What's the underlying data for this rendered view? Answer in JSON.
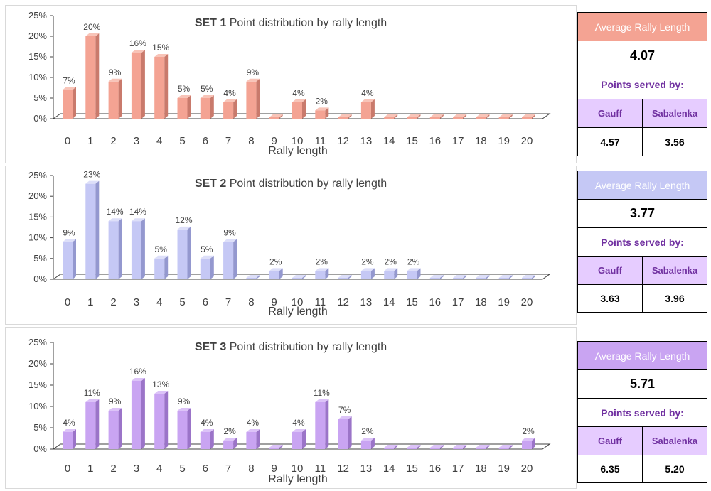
{
  "chart_data": [
    {
      "type": "bar",
      "title_bold": "SET 1",
      "title": "Point distribution by rally length",
      "xlabel": "Rally length",
      "ylabel": "",
      "ylim": [
        0,
        25
      ],
      "yticks": [
        "0%",
        "5%",
        "10%",
        "15%",
        "20%",
        "25%"
      ],
      "categories": [
        "0",
        "1",
        "2",
        "3",
        "4",
        "5",
        "6",
        "7",
        "8",
        "9",
        "10",
        "11",
        "12",
        "13",
        "14",
        "15",
        "16",
        "17",
        "18",
        "19",
        "20"
      ],
      "values": [
        7,
        20,
        9,
        16,
        15,
        5,
        5,
        4,
        9,
        0,
        4,
        2,
        0,
        4,
        0,
        0,
        0,
        0,
        0,
        0,
        0
      ],
      "labels": [
        "7%",
        "20%",
        "9%",
        "16%",
        "15%",
        "5%",
        "5%",
        "4%",
        "9%",
        "",
        "4%",
        "2%",
        "",
        "4%",
        "",
        "",
        "",
        "",
        "",
        "",
        ""
      ],
      "color": "#f4a393",
      "color_side": "#c97a6c",
      "color_top": "#f8c4b8",
      "grid": false
    },
    {
      "type": "bar",
      "title_bold": "SET 2",
      "title": "Point distribution by rally length",
      "xlabel": "Rally length",
      "ylabel": "",
      "ylim": [
        0,
        25
      ],
      "yticks": [
        "0%",
        "5%",
        "10%",
        "15%",
        "20%",
        "25%"
      ],
      "categories": [
        "0",
        "1",
        "2",
        "3",
        "4",
        "5",
        "6",
        "7",
        "8",
        "9",
        "10",
        "11",
        "12",
        "13",
        "14",
        "15",
        "16",
        "17",
        "18",
        "19",
        "20"
      ],
      "values": [
        9,
        23,
        14,
        14,
        5,
        12,
        5,
        9,
        0,
        2,
        0,
        2,
        0,
        2,
        2,
        2,
        0,
        0,
        0,
        0,
        0
      ],
      "labels": [
        "9%",
        "23%",
        "14%",
        "14%",
        "5%",
        "12%",
        "5%",
        "9%",
        "",
        "2%",
        "",
        "2%",
        "",
        "2%",
        "2%",
        "2%",
        "",
        "",
        "",
        "",
        ""
      ],
      "color": "#c5c8f5",
      "color_side": "#9498cf",
      "color_top": "#dddff9",
      "grid": false
    },
    {
      "type": "bar",
      "title_bold": "SET 3",
      "title": "Point distribution by rally length",
      "xlabel": "Rally length",
      "ylabel": "",
      "ylim": [
        0,
        25
      ],
      "yticks": [
        "0%",
        "5%",
        "10%",
        "15%",
        "20%",
        "25%"
      ],
      "categories": [
        "0",
        "1",
        "2",
        "3",
        "4",
        "5",
        "6",
        "7",
        "8",
        "9",
        "10",
        "11",
        "12",
        "13",
        "14",
        "15",
        "16",
        "17",
        "18",
        "19",
        "20"
      ],
      "values": [
        4,
        11,
        9,
        16,
        13,
        9,
        4,
        2,
        4,
        0,
        4,
        11,
        7,
        2,
        0,
        0,
        0,
        0,
        0,
        0,
        2
      ],
      "labels": [
        "4%",
        "11%",
        "9%",
        "16%",
        "13%",
        "9%",
        "4%",
        "2%",
        "4%",
        "",
        "4%",
        "11%",
        "7%",
        "2%",
        "",
        "",
        "",
        "",
        "",
        "",
        "2%"
      ],
      "color": "#c9a4f2",
      "color_side": "#9b74c8",
      "color_top": "#dcc3f8",
      "grid": false
    }
  ],
  "stats": [
    {
      "avg_label": "Average Rally Length",
      "avg_value": "4.07",
      "served_label": "Points served by:",
      "player1": "Gauff",
      "player2": "Sabalenka",
      "value1": "4.57",
      "value2": "3.56",
      "header_color": "#f4a393"
    },
    {
      "avg_label": "Average Rally Length",
      "avg_value": "3.77",
      "served_label": "Points served by:",
      "player1": "Gauff",
      "player2": "Sabalenka",
      "value1": "3.63",
      "value2": "3.96",
      "header_color": "#c5c8f5"
    },
    {
      "avg_label": "Average Rally Length",
      "avg_value": "5.71",
      "served_label": "Points served by:",
      "player1": "Gauff",
      "player2": "Sabalenka",
      "value1": "6.35",
      "value2": "5.20",
      "header_color": "#c9a4f2"
    }
  ]
}
